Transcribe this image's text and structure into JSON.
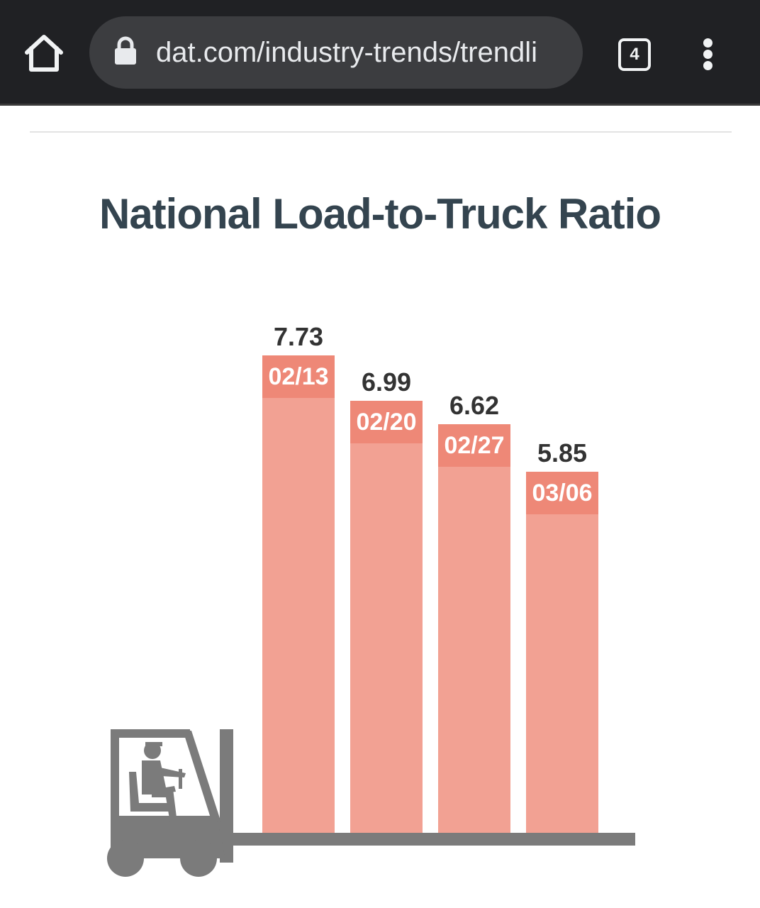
{
  "browser": {
    "url": "dat.com/industry-trends/trendli",
    "tab_count": "4",
    "icons": {
      "home": "home-icon",
      "lock": "lock-icon",
      "tabs": "tabs-icon",
      "menu": "more-vert-icon"
    }
  },
  "page": {
    "title": "National Load-to-Truck Ratio"
  },
  "chart_data": {
    "type": "bar",
    "title": "National Load-to-Truck Ratio",
    "categories": [
      "02/13",
      "02/20",
      "02/27",
      "03/06"
    ],
    "values": [
      7.73,
      6.99,
      6.62,
      5.85
    ],
    "value_labels": [
      "7.73",
      "6.99",
      "6.62",
      "5.85"
    ],
    "xlabel": "",
    "ylabel": "",
    "ylim": [
      0,
      8
    ],
    "grid": false,
    "legend": "none",
    "colors": {
      "bar": "#f2a193",
      "bar_cap": "#ee8877",
      "cap_text": "#ffffff",
      "value_text": "#333333",
      "forklift": "#7b7b7b"
    },
    "decoration": "forklift-icon"
  }
}
